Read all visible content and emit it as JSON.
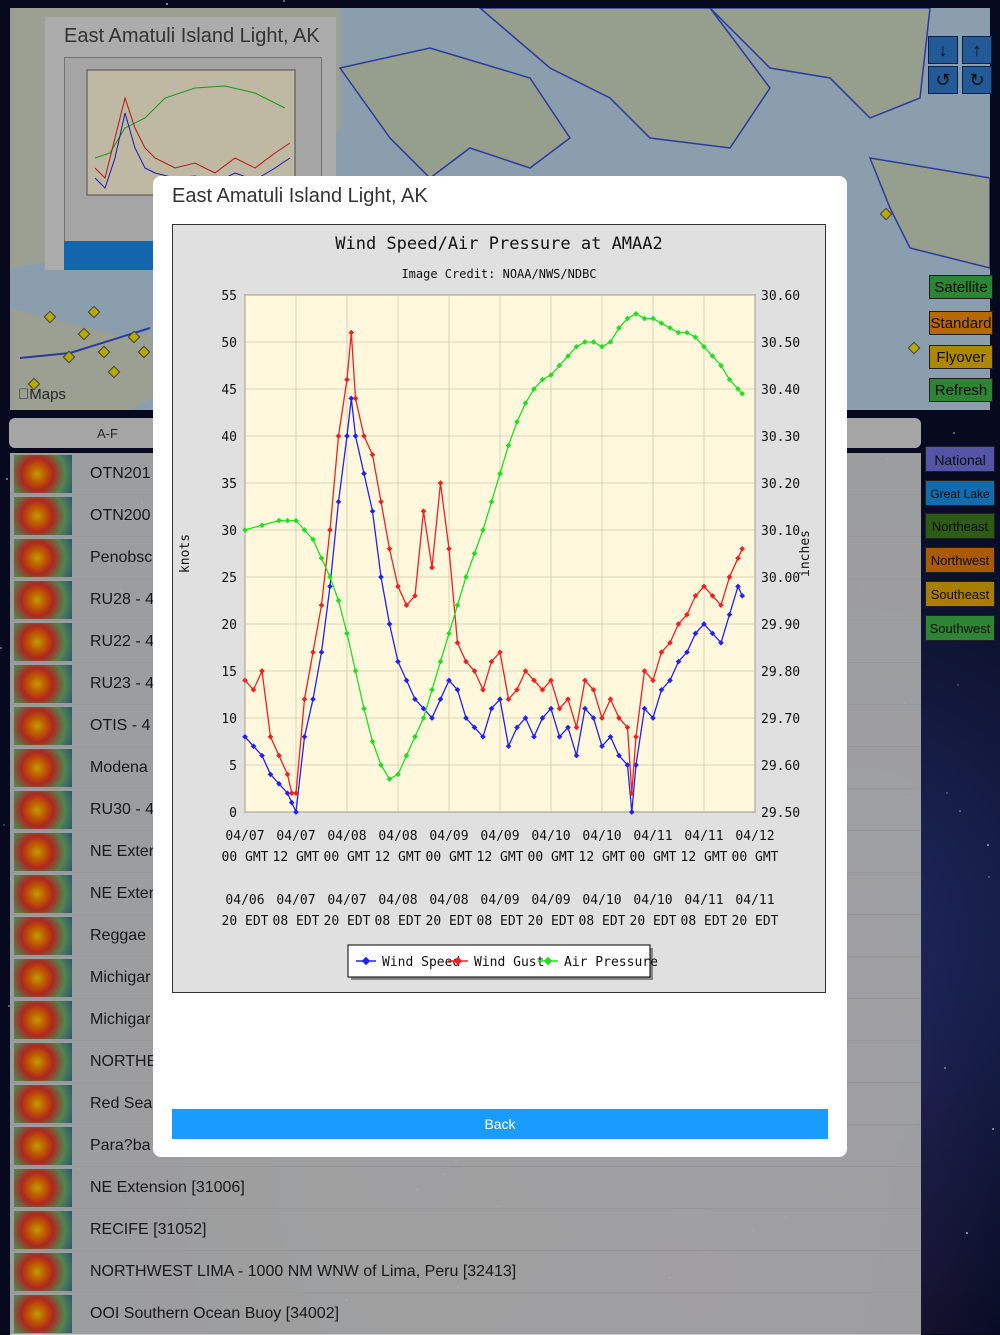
{
  "map": {
    "attribution": "Maps",
    "controls": [
      {
        "name": "down-arrow-icon",
        "glyph": "↓"
      },
      {
        "name": "up-arrow-icon",
        "glyph": "↑"
      },
      {
        "name": "rotate-left-icon",
        "glyph": "↺"
      },
      {
        "name": "rotate-right-icon",
        "glyph": "↻"
      }
    ],
    "view_buttons": [
      {
        "label": "Satellite",
        "color": "#3cb043"
      },
      {
        "label": "Standard",
        "color": "#f28c00"
      },
      {
        "label": "Flyover",
        "color": "#e8b400"
      },
      {
        "label": "Refresh",
        "color": "#3cb043"
      }
    ]
  },
  "regions": [
    {
      "label": "National",
      "color": "#6f6fe0"
    },
    {
      "label": "Great Lake",
      "color": "#1a8fe6"
    },
    {
      "label": "Northeast",
      "color": "#3c7a1e"
    },
    {
      "label": "Northwest",
      "color": "#e07a00"
    },
    {
      "label": "Southeast",
      "color": "#e0a800"
    },
    {
      "label": "Southwest",
      "color": "#3cb043"
    }
  ],
  "preview": {
    "title": "East Amatuli Island Light, AK"
  },
  "tabs": {
    "first": "A-F"
  },
  "list": [
    "OTN201",
    "OTN200",
    "Penobsc",
    "RU28 - 4",
    "RU22 - 4",
    "RU23 - 4",
    "OTIS - 4",
    "Modena",
    "RU30 - 4",
    "NE Exter",
    "NE Exter",
    "Reggae",
    "Michigar",
    "Michigar",
    "NORTHE",
    "Red Sea",
    "Para?ba",
    "NE Extension [31006]",
    "RECIFE [31052]",
    "NORTHWEST LIMA - 1000 NM WNW of Lima, Peru [32413]",
    "OOI Southern Ocean Buoy [34002]"
  ],
  "modal": {
    "title": "East Amatuli Island Light, AK",
    "back_label": "Back"
  },
  "chart_data": {
    "type": "line",
    "title": "Wind Speed/Air Pressure at AMAA2",
    "subtitle": "Image Credit: NOAA/NWS/NDBC",
    "ylabel": "knots",
    "y2label": "inches",
    "ylim": [
      0,
      55
    ],
    "y2lim": [
      29.5,
      30.6
    ],
    "yticks": [
      "0",
      "5",
      "10",
      "15",
      "20",
      "25",
      "30",
      "35",
      "40",
      "45",
      "50",
      "55"
    ],
    "y2ticks": [
      "29.50",
      "29.60",
      "29.70",
      "29.80",
      "29.90",
      "30.00",
      "30.10",
      "30.20",
      "30.30",
      "30.40",
      "30.50",
      "30.60"
    ],
    "xlim": [
      0,
      120
    ],
    "xticks_gmt": [
      [
        "04/07",
        "00 GMT"
      ],
      [
        "04/07",
        "12 GMT"
      ],
      [
        "04/08",
        "00 GMT"
      ],
      [
        "04/08",
        "12 GMT"
      ],
      [
        "04/09",
        "00 GMT"
      ],
      [
        "04/09",
        "12 GMT"
      ],
      [
        "04/10",
        "00 GMT"
      ],
      [
        "04/10",
        "12 GMT"
      ],
      [
        "04/11",
        "00 GMT"
      ],
      [
        "04/11",
        "12 GMT"
      ],
      [
        "04/12",
        "00 GMT"
      ]
    ],
    "xticks_edt": [
      [
        "04/06",
        "20 EDT"
      ],
      [
        "04/07",
        "08 EDT"
      ],
      [
        "04/07",
        "20 EDT"
      ],
      [
        "04/08",
        "08 EDT"
      ],
      [
        "04/08",
        "20 EDT"
      ],
      [
        "04/09",
        "08 EDT"
      ],
      [
        "04/09",
        "20 EDT"
      ],
      [
        "04/10",
        "08 EDT"
      ],
      [
        "04/10",
        "20 EDT"
      ],
      [
        "04/11",
        "08 EDT"
      ],
      [
        "04/11",
        "20 EDT"
      ]
    ],
    "legend": [
      "Wind Speed",
      "Wind Gust",
      "Air Pressure"
    ],
    "legend_position": "bottom",
    "grid": true,
    "series": [
      {
        "name": "Wind Speed",
        "axis": "left",
        "color": "#2222ee",
        "x": [
          0,
          2,
          4,
          6,
          8,
          10,
          11,
          12,
          14,
          16,
          18,
          20,
          22,
          24,
          25,
          26,
          28,
          30,
          32,
          34,
          36,
          38,
          40,
          42,
          44,
          46,
          48,
          50,
          52,
          54,
          56,
          58,
          60,
          62,
          64,
          66,
          68,
          70,
          72,
          74,
          76,
          78,
          80,
          82,
          84,
          86,
          88,
          90,
          91,
          92,
          94,
          96,
          98,
          100,
          102,
          104,
          106,
          108,
          110,
          112,
          114,
          116,
          117
        ],
        "y": [
          8,
          7,
          6,
          4,
          3,
          2,
          1,
          0,
          8,
          12,
          17,
          24,
          33,
          40,
          44,
          40,
          36,
          32,
          25,
          20,
          16,
          14,
          12,
          11,
          10,
          12,
          14,
          13,
          10,
          9,
          8,
          11,
          12,
          7,
          9,
          10,
          8,
          10,
          11,
          8,
          9,
          6,
          11,
          10,
          7,
          8,
          6,
          5,
          0,
          5,
          11,
          10,
          13,
          14,
          16,
          17,
          19,
          20,
          19,
          18,
          21,
          24,
          23
        ]
      },
      {
        "name": "Wind Gust",
        "axis": "left",
        "color": "#ee2222",
        "x": [
          0,
          2,
          4,
          6,
          8,
          10,
          11,
          12,
          14,
          16,
          18,
          20,
          22,
          24,
          25,
          26,
          28,
          30,
          32,
          34,
          36,
          38,
          40,
          42,
          44,
          46,
          48,
          50,
          52,
          54,
          56,
          58,
          60,
          62,
          64,
          66,
          68,
          70,
          72,
          74,
          76,
          78,
          80,
          82,
          84,
          86,
          88,
          90,
          91,
          92,
          94,
          96,
          98,
          100,
          102,
          104,
          106,
          108,
          110,
          112,
          114,
          116,
          117
        ],
        "y": [
          14,
          13,
          15,
          8,
          6,
          4,
          2,
          2,
          12,
          17,
          22,
          30,
          40,
          46,
          51,
          44,
          40,
          38,
          33,
          28,
          24,
          22,
          23,
          32,
          26,
          35,
          28,
          18,
          16,
          15,
          13,
          16,
          17,
          12,
          13,
          15,
          14,
          13,
          14,
          11,
          12,
          9,
          14,
          13,
          10,
          12,
          10,
          9,
          2,
          8,
          15,
          14,
          17,
          18,
          20,
          21,
          23,
          24,
          23,
          22,
          25,
          27,
          28
        ]
      },
      {
        "name": "Air Pressure",
        "axis": "right",
        "color": "#22dd22",
        "x": [
          0,
          4,
          8,
          10,
          12,
          14,
          16,
          18,
          20,
          22,
          24,
          26,
          28,
          30,
          32,
          34,
          36,
          38,
          40,
          42,
          44,
          46,
          48,
          50,
          52,
          54,
          56,
          58,
          60,
          62,
          64,
          66,
          68,
          70,
          72,
          74,
          76,
          78,
          80,
          82,
          84,
          86,
          88,
          90,
          92,
          94,
          96,
          98,
          100,
          102,
          104,
          106,
          108,
          110,
          112,
          114,
          116,
          117
        ],
        "y": [
          30.1,
          30.11,
          30.12,
          30.12,
          30.12,
          30.1,
          30.08,
          30.04,
          30.0,
          29.95,
          29.88,
          29.8,
          29.72,
          29.65,
          29.6,
          29.57,
          29.58,
          29.62,
          29.66,
          29.7,
          29.76,
          29.82,
          29.88,
          29.94,
          30.0,
          30.05,
          30.1,
          30.16,
          30.22,
          30.28,
          30.33,
          30.37,
          30.4,
          30.42,
          30.43,
          30.45,
          30.47,
          30.49,
          30.5,
          30.5,
          30.49,
          30.5,
          30.53,
          30.55,
          30.56,
          30.55,
          30.55,
          30.54,
          30.53,
          30.52,
          30.52,
          30.51,
          30.49,
          30.47,
          30.45,
          30.42,
          30.4,
          30.39
        ]
      }
    ]
  }
}
